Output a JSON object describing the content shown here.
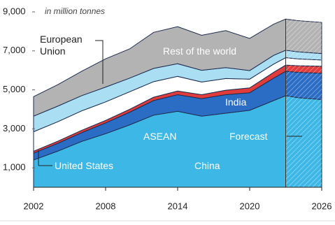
{
  "chart_data": {
    "type": "area",
    "stacked": true,
    "subtitle": "in million tonnes",
    "x": [
      2002,
      2004,
      2006,
      2008,
      2010,
      2012,
      2014,
      2016,
      2018,
      2020,
      2022,
      2023,
      2024,
      2026
    ],
    "series": [
      {
        "name": "China",
        "color": "#3db8e6",
        "values": [
          1400,
          1850,
          2350,
          2750,
          3200,
          3700,
          3900,
          3650,
          3800,
          3950,
          4450,
          4700,
          4600,
          4500
        ]
      },
      {
        "name": "India",
        "color": "#2b6cc4",
        "values": [
          350,
          400,
          450,
          550,
          650,
          750,
          850,
          900,
          950,
          900,
          1150,
          1250,
          1300,
          1350
        ]
      },
      {
        "name": "ASEAN",
        "color": "#e23b3b",
        "values": [
          100,
          110,
          120,
          130,
          150,
          170,
          190,
          200,
          230,
          250,
          300,
          320,
          340,
          360
        ]
      },
      {
        "name": "United States",
        "color": "#ffffff",
        "values": [
          1000,
          1000,
          1000,
          950,
          900,
          800,
          750,
          650,
          600,
          450,
          420,
          380,
          350,
          320
        ]
      },
      {
        "name": "European Union",
        "color": "#a9def3",
        "values": [
          800,
          800,
          780,
          760,
          700,
          680,
          650,
          600,
          560,
          440,
          450,
          380,
          360,
          330
        ]
      },
      {
        "name": "Rest of the world",
        "color": "#b3b3b3",
        "values": [
          1000,
          1100,
          1250,
          1450,
          1500,
          1850,
          1900,
          1800,
          1900,
          1650,
          1600,
          1600,
          1600,
          1600
        ]
      }
    ],
    "forecast_label": "Forecast",
    "forecast_start": 2023,
    "xlim": [
      2002,
      2026
    ],
    "xticks": [
      2002,
      2008,
      2014,
      2020,
      2026
    ],
    "ylim": [
      0,
      9000
    ],
    "yticks": [
      {
        "value": 1000,
        "label": "1,000"
      },
      {
        "value": 3000,
        "label": "3,000"
      },
      {
        "value": 5000,
        "label": "5,000"
      },
      {
        "value": 7000,
        "label": "7,000"
      },
      {
        "value": 9000,
        "label": "9,000"
      }
    ]
  }
}
